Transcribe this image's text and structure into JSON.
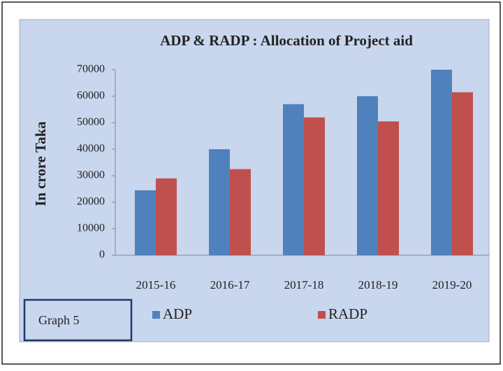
{
  "chart_data": {
    "type": "bar",
    "title": "ADP & RADP : Allocation of Project aid",
    "y_label": "In crore Taka",
    "caption": "Graph 5",
    "categories": [
      "2015-16",
      "2016-17",
      "2017-18",
      "2018-19",
      "2019-20"
    ],
    "series": [
      {
        "name": "ADP",
        "color": "#4f81bd",
        "values": [
          24500,
          40000,
          57000,
          60000,
          70000
        ]
      },
      {
        "name": "RADP",
        "color": "#c0504d",
        "values": [
          29000,
          32500,
          52000,
          50500,
          61500
        ]
      }
    ],
    "ylim": [
      0,
      70000
    ],
    "yticks": [
      0,
      10000,
      20000,
      30000,
      40000,
      50000,
      60000,
      70000
    ],
    "grid": false
  }
}
